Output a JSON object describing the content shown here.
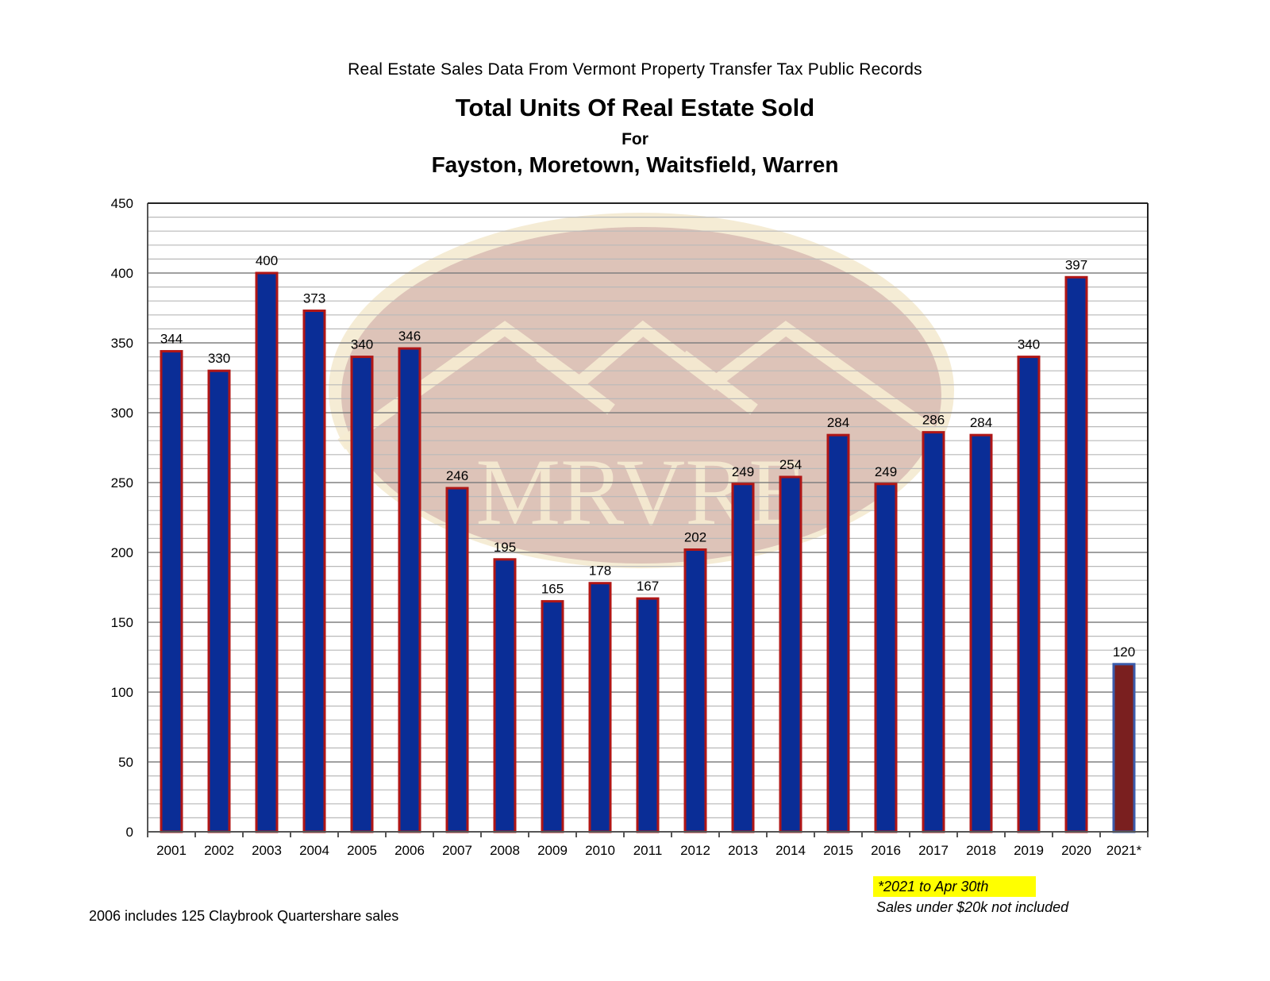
{
  "header": {
    "source": "Real Estate Sales Data From Vermont Property Transfer Tax Public Records",
    "title": "Total Units Of Real Estate Sold",
    "for": "For",
    "towns": "Fayston, Moretown, Waitsfield, Warren"
  },
  "watermark": {
    "text": "MRVRE"
  },
  "notes": {
    "footnote_left": "2006 includes 125 Claybrook Quartershare sales",
    "partial_year": "*2021 to Apr 30th",
    "exclusion": "Sales under $20k not included"
  },
  "colors": {
    "bar_fill": "#0a2d96",
    "bar_border": "#b01616",
    "partial_fill": "#7a1f1f",
    "partial_border": "#3b5bab",
    "grid": "#b9b9b9",
    "grid_major": "#808080",
    "highlight": "#ffff00"
  },
  "chart_data": {
    "type": "bar",
    "categories": [
      "2001",
      "2002",
      "2003",
      "2004",
      "2005",
      "2006",
      "2007",
      "2008",
      "2009",
      "2010",
      "2011",
      "2012",
      "2013",
      "2014",
      "2015",
      "2016",
      "2017",
      "2018",
      "2019",
      "2020",
      "2021*"
    ],
    "values": [
      344,
      330,
      400,
      373,
      340,
      346,
      246,
      195,
      165,
      178,
      167,
      202,
      249,
      254,
      284,
      249,
      286,
      284,
      340,
      397,
      120
    ],
    "ylim": [
      0,
      450
    ],
    "yticks": [
      0,
      50,
      100,
      150,
      200,
      250,
      300,
      350,
      400,
      450
    ],
    "minor_grid_step": 10,
    "grid": true,
    "legend": "none",
    "data_labels": true
  }
}
